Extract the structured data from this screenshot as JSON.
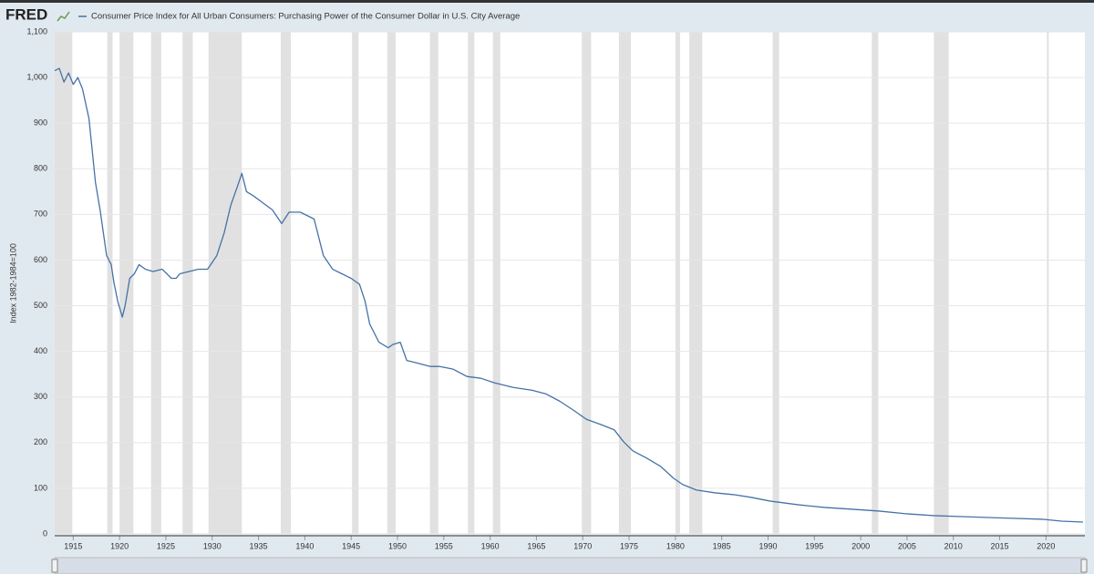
{
  "header": {
    "logo": "FRED"
  },
  "chart_data": {
    "type": "line",
    "title": "Consumer Price Index for All Urban Consumers: Purchasing Power of the Consumer Dollar in U.S. City Average",
    "y_label": "Index 1982-1984=100",
    "x": [
      1913.0,
      1913.5,
      1914.0,
      1914.5,
      1915.0,
      1915.5,
      1916.0,
      1916.7,
      1917.4,
      1917.9,
      1918.6,
      1919.1,
      1919.4,
      1919.8,
      1920.3,
      1920.6,
      1921.1,
      1921.6,
      1922.1,
      1922.8,
      1923.6,
      1924.6,
      1925.6,
      1926.1,
      1926.5,
      1927.5,
      1928.5,
      1929.5,
      1930.5,
      1931.3,
      1932.0,
      1932.7,
      1933.2,
      1933.7,
      1934.5,
      1935.5,
      1936.5,
      1937.5,
      1938.3,
      1939.5,
      1941.0,
      1942.0,
      1943.0,
      1944.0,
      1945.0,
      1945.9,
      1946.5,
      1947.0,
      1948.0,
      1949.0,
      1949.5,
      1950.3,
      1951.0,
      1952.0,
      1953.5,
      1954.5,
      1956.0,
      1957.5,
      1959.0,
      1960.5,
      1962.5,
      1964.5,
      1966.0,
      1967.5,
      1969.0,
      1970.4,
      1971.9,
      1973.4,
      1974.4,
      1975.4,
      1976.9,
      1978.4,
      1979.8,
      1980.8,
      1982.3,
      1984.3,
      1986.3,
      1988.2,
      1990.2,
      1993.2,
      1996.1,
      1999.1,
      2002.0,
      2005.0,
      2007.9,
      2010.9,
      2013.8,
      2016.8,
      2019.7,
      2021.7,
      2024.0
    ],
    "series": [
      {
        "name": "Consumer Price Index for All Urban Consumers: Purchasing Power of the Consumer Dollar in U.S. City Average",
        "color": "#4572a7",
        "values": [
          1015,
          1020,
          990,
          1010,
          985,
          1000,
          975,
          910,
          770,
          710,
          610,
          590,
          550,
          510,
          475,
          500,
          560,
          570,
          590,
          580,
          575,
          580,
          560,
          560,
          570,
          575,
          580,
          580,
          610,
          660,
          720,
          760,
          790,
          750,
          740,
          725,
          710,
          680,
          705,
          705,
          690,
          610,
          580,
          570,
          560,
          547,
          510,
          460,
          420,
          408,
          415,
          420,
          380,
          375,
          367,
          367,
          361,
          345,
          341,
          331,
          321,
          315,
          307,
          291,
          271,
          251,
          240,
          228,
          202,
          182,
          166,
          148,
          122,
          108,
          96,
          90,
          86,
          80,
          72,
          64,
          58,
          54,
          50,
          44,
          40,
          38,
          36,
          34,
          32,
          28,
          26
        ]
      }
    ],
    "recessions": [
      [
        1913.0,
        1914.9
      ],
      [
        1918.67,
        1919.25
      ],
      [
        1920.0,
        1921.5
      ],
      [
        1923.4,
        1924.5
      ],
      [
        1926.8,
        1927.9
      ],
      [
        1929.6,
        1933.2
      ],
      [
        1937.4,
        1938.5
      ],
      [
        1945.1,
        1945.8
      ],
      [
        1948.9,
        1949.8
      ],
      [
        1953.5,
        1954.4
      ],
      [
        1957.6,
        1958.3
      ],
      [
        1960.3,
        1961.1
      ],
      [
        1969.9,
        1970.9
      ],
      [
        1973.9,
        1975.2
      ],
      [
        1980.0,
        1980.5
      ],
      [
        1981.5,
        1982.9
      ],
      [
        1990.5,
        1991.2
      ],
      [
        2001.2,
        2001.9
      ],
      [
        2007.9,
        2009.5
      ],
      [
        2020.1,
        2020.3
      ]
    ],
    "recession_color": "#e1e1e1",
    "xlim": [
      1913.0,
      2024.2
    ],
    "xticks": [
      1915,
      1920,
      1925,
      1930,
      1935,
      1940,
      1945,
      1950,
      1955,
      1960,
      1965,
      1970,
      1975,
      1980,
      1985,
      1990,
      1995,
      2000,
      2005,
      2010,
      2015,
      2020
    ],
    "ylim": [
      0,
      1100
    ],
    "yticks": [
      0,
      100,
      200,
      300,
      400,
      500,
      600,
      700,
      800,
      900,
      {
        "value": 1000,
        "label": "1,000"
      },
      {
        "value": 1100,
        "label": "1,100"
      }
    ],
    "grid": true
  }
}
